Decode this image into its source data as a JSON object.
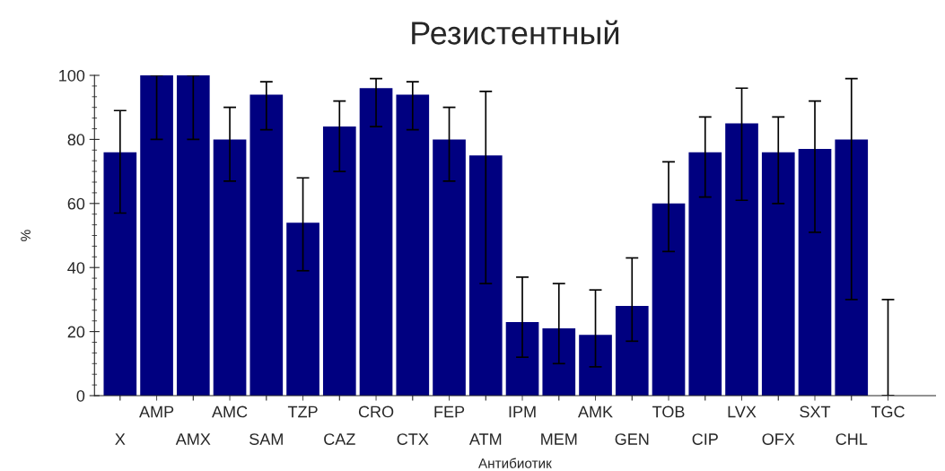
{
  "chart_data": {
    "type": "bar",
    "title": "Резистентный",
    "xlabel": "Антибиотик",
    "ylabel": "%",
    "categories": [
      "X",
      "AMP",
      "AMX",
      "AMC",
      "SAM",
      "TZP",
      "CAZ",
      "CRO",
      "CTX",
      "FEP",
      "ATM",
      "IPM",
      "MEM",
      "AMK",
      "GEN",
      "TOB",
      "CIP",
      "LVX",
      "OFX",
      "SXT",
      "CHL",
      "TGC"
    ],
    "series": [
      {
        "color": "#000080",
        "values": [
          76,
          100,
          100,
          80,
          94,
          54,
          84,
          96,
          94,
          80,
          75,
          23,
          21,
          19,
          28,
          60,
          76,
          85,
          76,
          77,
          80,
          0
        ],
        "errors": [
          [
            57,
            89
          ],
          [
            80,
            100
          ],
          [
            80,
            100
          ],
          [
            67,
            90
          ],
          [
            83,
            98
          ],
          [
            39,
            68
          ],
          [
            70,
            92
          ],
          [
            84,
            99
          ],
          [
            83,
            98
          ],
          [
            67,
            90
          ],
          [
            35,
            95
          ],
          [
            12,
            37
          ],
          [
            10,
            35
          ],
          [
            9,
            33
          ],
          [
            17,
            43
          ],
          [
            45,
            73
          ],
          [
            62,
            87
          ],
          [
            61,
            96
          ],
          [
            60,
            87
          ],
          [
            51,
            92
          ],
          [
            30,
            99
          ],
          [
            0,
            30
          ]
        ]
      }
    ],
    "ylim": [
      0,
      100
    ],
    "yticks": [
      0,
      20,
      40,
      60,
      80,
      100
    ],
    "grid": false,
    "legend": false
  }
}
